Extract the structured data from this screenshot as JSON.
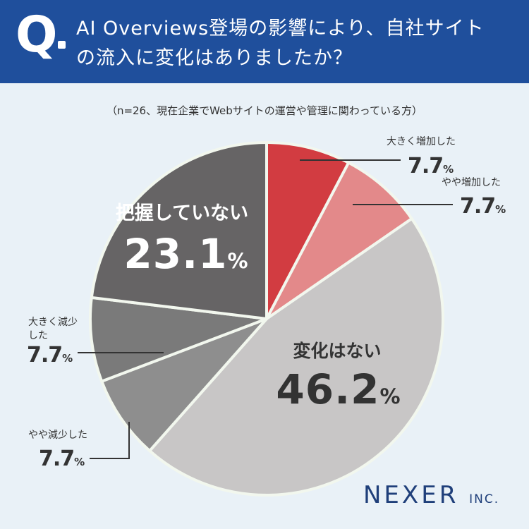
{
  "header": {
    "q": "Q",
    "line1": "AI Overviews登場の影響により、自社サイト",
    "line2": "の流入に変化はありましたか？"
  },
  "note": "（n=26、現在企業でWebサイトの運営や管理に関わっている方）",
  "brand": {
    "name": "NEXER",
    "suffix": "INC."
  },
  "colors": {
    "header_bg": "#1f4f9c",
    "background": "#e9f1f7",
    "slice_separator": "#f2f7ee"
  },
  "chart_data": {
    "type": "pie",
    "unit": "%",
    "slices": [
      {
        "label": "大きく増加した",
        "value": 7.7,
        "value_text": "7.7",
        "color": "#d23c41"
      },
      {
        "label": "やや増加した",
        "value": 7.7,
        "value_text": "7.7",
        "color": "#e3898a"
      },
      {
        "label": "変化はない",
        "value": 46.2,
        "value_text": "46.2",
        "color": "#c8c6c6"
      },
      {
        "label": "やや減少した",
        "value": 7.7,
        "value_text": "7.7",
        "color": "#8e8e8e"
      },
      {
        "label": "大きく減少した",
        "value": 7.7,
        "value_text": "7.7",
        "color": "#7a7a7a"
      },
      {
        "label": "把握していない",
        "value": 23.1,
        "value_text": "23.1",
        "color": "#666465"
      }
    ]
  }
}
